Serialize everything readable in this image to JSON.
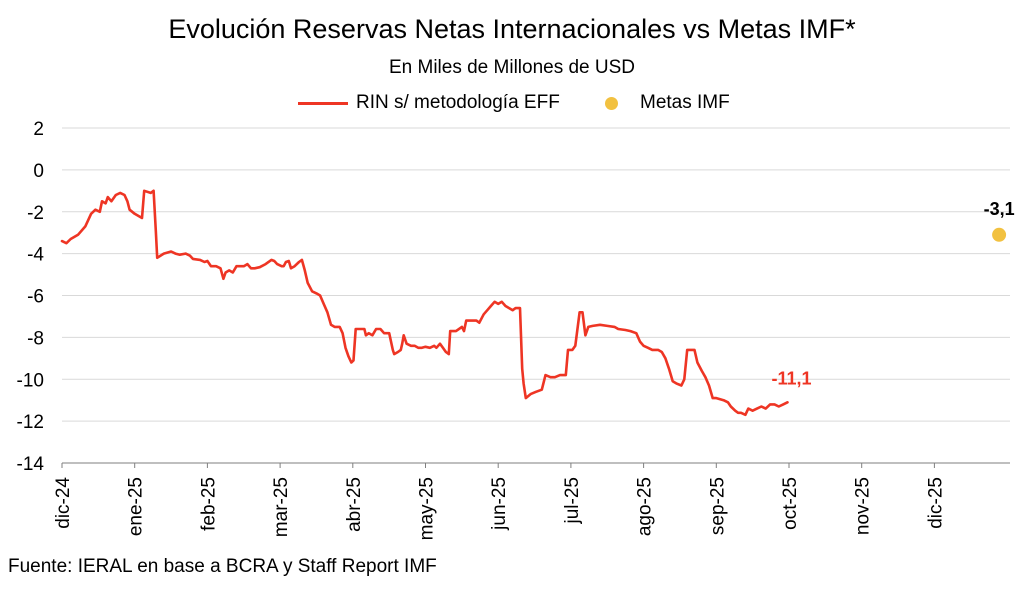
{
  "chart_data": {
    "type": "line",
    "title": "Evolución Reservas Netas Internacionales vs Metas IMF*",
    "subtitle": "En Miles de Millones de USD",
    "ylim": [
      -14,
      2
    ],
    "yticks": [
      "2",
      "0",
      "-2",
      "-4",
      "-6",
      "-8",
      "-10",
      "-12",
      "-14"
    ],
    "ytick_values": [
      2,
      0,
      -2,
      -4,
      -6,
      -8,
      -10,
      -12,
      -14
    ],
    "categories": [
      "dic-24",
      "ene-25",
      "feb-25",
      "mar-25",
      "abr-25",
      "may-25",
      "jun-25",
      "jul-25",
      "ago-25",
      "sep-25",
      "oct-25",
      "nov-25",
      "dic-25"
    ],
    "legend_position": "top",
    "series": [
      {
        "name": "RIN s/ metodología EFF",
        "color": "#ee3524",
        "style": "line",
        "points": [
          [
            0.0,
            -3.4
          ],
          [
            0.06,
            -3.5
          ],
          [
            0.12,
            -3.3
          ],
          [
            0.22,
            -3.1
          ],
          [
            0.32,
            -2.7
          ],
          [
            0.4,
            -2.1
          ],
          [
            0.46,
            -1.9
          ],
          [
            0.52,
            -2.0
          ],
          [
            0.55,
            -1.5
          ],
          [
            0.6,
            -1.6
          ],
          [
            0.63,
            -1.3
          ],
          [
            0.68,
            -1.5
          ],
          [
            0.74,
            -1.2
          ],
          [
            0.8,
            -1.1
          ],
          [
            0.86,
            -1.2
          ],
          [
            0.9,
            -1.5
          ],
          [
            0.93,
            -1.9
          ],
          [
            1.0,
            -2.1
          ],
          [
            1.1,
            -2.3
          ],
          [
            1.13,
            -1.0
          ],
          [
            1.22,
            -1.1
          ],
          [
            1.26,
            -1.0
          ],
          [
            1.29,
            -2.9
          ],
          [
            1.31,
            -4.2
          ],
          [
            1.4,
            -4.0
          ],
          [
            1.5,
            -3.9
          ],
          [
            1.56,
            -4.0
          ],
          [
            1.62,
            -4.05
          ],
          [
            1.7,
            -4.0
          ],
          [
            1.76,
            -4.1
          ],
          [
            1.8,
            -4.25
          ],
          [
            1.9,
            -4.3
          ],
          [
            1.96,
            -4.4
          ],
          [
            2.0,
            -4.35
          ],
          [
            2.05,
            -4.6
          ],
          [
            2.12,
            -4.6
          ],
          [
            2.18,
            -4.7
          ],
          [
            2.22,
            -5.2
          ],
          [
            2.25,
            -4.9
          ],
          [
            2.3,
            -4.8
          ],
          [
            2.35,
            -4.9
          ],
          [
            2.4,
            -4.6
          ],
          [
            2.5,
            -4.6
          ],
          [
            2.55,
            -4.5
          ],
          [
            2.6,
            -4.7
          ],
          [
            2.65,
            -4.7
          ],
          [
            2.72,
            -4.65
          ],
          [
            2.8,
            -4.5
          ],
          [
            2.88,
            -4.3
          ],
          [
            2.92,
            -4.35
          ],
          [
            2.96,
            -4.5
          ],
          [
            3.02,
            -4.6
          ],
          [
            3.05,
            -4.6
          ],
          [
            3.08,
            -4.4
          ],
          [
            3.12,
            -4.35
          ],
          [
            3.15,
            -4.7
          ],
          [
            3.2,
            -4.6
          ],
          [
            3.26,
            -4.4
          ],
          [
            3.3,
            -4.3
          ],
          [
            3.34,
            -4.8
          ],
          [
            3.38,
            -5.4
          ],
          [
            3.44,
            -5.8
          ],
          [
            3.5,
            -5.9
          ],
          [
            3.55,
            -6.0
          ],
          [
            3.6,
            -6.4
          ],
          [
            3.65,
            -6.8
          ],
          [
            3.7,
            -7.4
          ],
          [
            3.75,
            -7.5
          ],
          [
            3.82,
            -7.5
          ],
          [
            3.86,
            -7.8
          ],
          [
            3.9,
            -8.5
          ],
          [
            3.94,
            -8.9
          ],
          [
            3.98,
            -9.2
          ],
          [
            4.01,
            -9.1
          ],
          [
            4.04,
            -7.6
          ],
          [
            4.1,
            -7.6
          ],
          [
            4.16,
            -7.6
          ],
          [
            4.18,
            -7.9
          ],
          [
            4.22,
            -7.8
          ],
          [
            4.27,
            -7.9
          ],
          [
            4.32,
            -7.6
          ],
          [
            4.38,
            -7.6
          ],
          [
            4.43,
            -7.8
          ],
          [
            4.5,
            -7.8
          ],
          [
            4.55,
            -8.6
          ],
          [
            4.57,
            -8.8
          ],
          [
            4.62,
            -8.7
          ],
          [
            4.66,
            -8.6
          ],
          [
            4.68,
            -8.3
          ],
          [
            4.7,
            -7.9
          ],
          [
            4.74,
            -8.3
          ],
          [
            4.8,
            -8.4
          ],
          [
            4.85,
            -8.4
          ],
          [
            4.9,
            -8.5
          ],
          [
            4.95,
            -8.5
          ],
          [
            5.0,
            -8.45
          ],
          [
            5.06,
            -8.5
          ],
          [
            5.12,
            -8.4
          ],
          [
            5.15,
            -8.5
          ],
          [
            5.2,
            -8.3
          ],
          [
            5.24,
            -8.5
          ],
          [
            5.28,
            -8.7
          ],
          [
            5.32,
            -8.8
          ],
          [
            5.34,
            -7.7
          ],
          [
            5.42,
            -7.7
          ],
          [
            5.5,
            -7.5
          ],
          [
            5.53,
            -7.7
          ],
          [
            5.56,
            -7.2
          ],
          [
            5.64,
            -7.2
          ],
          [
            5.7,
            -7.2
          ],
          [
            5.74,
            -7.3
          ],
          [
            5.8,
            -6.9
          ],
          [
            5.85,
            -6.7
          ],
          [
            5.9,
            -6.5
          ],
          [
            5.95,
            -6.3
          ],
          [
            6.0,
            -6.4
          ],
          [
            6.05,
            -6.3
          ],
          [
            6.1,
            -6.5
          ],
          [
            6.15,
            -6.6
          ],
          [
            6.2,
            -6.7
          ],
          [
            6.24,
            -6.6
          ],
          [
            6.3,
            -6.6
          ],
          [
            6.33,
            -9.5
          ],
          [
            6.35,
            -10.2
          ],
          [
            6.38,
            -10.9
          ],
          [
            6.45,
            -10.7
          ],
          [
            6.52,
            -10.6
          ],
          [
            6.6,
            -10.5
          ],
          [
            6.65,
            -9.8
          ],
          [
            6.72,
            -9.9
          ],
          [
            6.78,
            -9.9
          ],
          [
            6.85,
            -9.8
          ],
          [
            6.93,
            -9.8
          ],
          [
            6.96,
            -8.6
          ],
          [
            7.02,
            -8.6
          ],
          [
            7.06,
            -8.4
          ],
          [
            7.12,
            -6.8
          ],
          [
            7.16,
            -6.8
          ],
          [
            7.2,
            -7.9
          ],
          [
            7.24,
            -7.5
          ],
          [
            7.3,
            -7.45
          ],
          [
            7.4,
            -7.4
          ],
          [
            7.5,
            -7.45
          ],
          [
            7.6,
            -7.5
          ],
          [
            7.65,
            -7.6
          ],
          [
            7.75,
            -7.65
          ],
          [
            7.82,
            -7.7
          ],
          [
            7.9,
            -7.8
          ],
          [
            7.95,
            -8.2
          ],
          [
            8.0,
            -8.4
          ],
          [
            8.06,
            -8.5
          ],
          [
            8.12,
            -8.6
          ],
          [
            8.2,
            -8.6
          ],
          [
            8.25,
            -8.7
          ],
          [
            8.3,
            -9.0
          ],
          [
            8.35,
            -9.5
          ],
          [
            8.4,
            -10.1
          ],
          [
            8.45,
            -10.2
          ],
          [
            8.52,
            -10.3
          ],
          [
            8.56,
            -10.0
          ],
          [
            8.6,
            -8.6
          ],
          [
            8.66,
            -8.6
          ],
          [
            8.7,
            -8.6
          ],
          [
            8.74,
            -9.2
          ],
          [
            8.8,
            -9.6
          ],
          [
            8.85,
            -9.9
          ],
          [
            8.9,
            -10.3
          ],
          [
            8.95,
            -10.9
          ],
          [
            9.0,
            -10.9
          ],
          [
            9.1,
            -11.0
          ],
          [
            9.16,
            -11.1
          ],
          [
            9.2,
            -11.3
          ],
          [
            9.26,
            -11.5
          ],
          [
            9.3,
            -11.6
          ],
          [
            9.34,
            -11.6
          ],
          [
            9.4,
            -11.7
          ],
          [
            9.44,
            -11.4
          ],
          [
            9.5,
            -11.5
          ],
          [
            9.56,
            -11.4
          ],
          [
            9.62,
            -11.3
          ],
          [
            9.68,
            -11.4
          ],
          [
            9.74,
            -11.2
          ],
          [
            9.8,
            -11.2
          ],
          [
            9.86,
            -11.3
          ],
          [
            9.92,
            -11.2
          ],
          [
            9.98,
            -11.1
          ]
        ],
        "end_label": "-11,1",
        "end_value": -11.1
      },
      {
        "name": "Metas IMF",
        "color": "#f2c140",
        "style": "marker",
        "points": [
          [
            13.0,
            -3.1
          ]
        ],
        "end_label": "-3,1",
        "end_value": -3.1
      }
    ],
    "source": "Fuente: IERAL en base a BCRA y Staff Report IMF"
  }
}
